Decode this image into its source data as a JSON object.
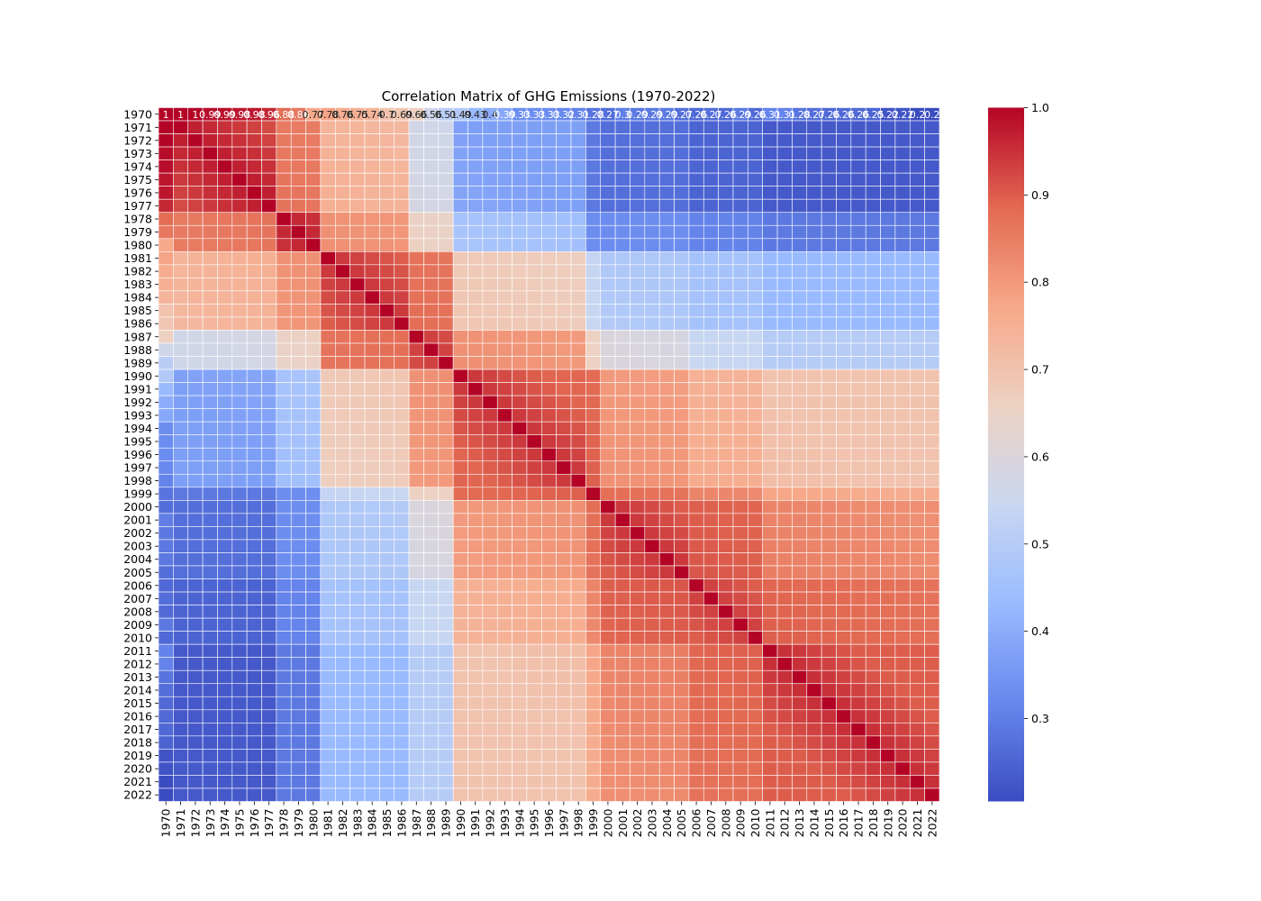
{
  "chart_data": {
    "type": "heatmap",
    "title": "Correlation Matrix of GHG Emissions (1970-2022)",
    "xlabel": "",
    "ylabel": "",
    "colormap": "coolwarm",
    "colormap_stops": [
      "#3b4cc0",
      "#6788ee",
      "#9abbff",
      "#c9d7f0",
      "#edd1c2",
      "#f7a889",
      "#e26952",
      "#b40426"
    ],
    "color_range": [
      0.205,
      1.0
    ],
    "colorbar_ticks": [
      "0.3",
      "0.4",
      "0.5",
      "0.6",
      "0.7",
      "0.8",
      "0.9",
      "1.0"
    ],
    "years_start": 1970,
    "years_end": 2022,
    "annotated_row": {
      "year": "1970",
      "labels": [
        "1",
        "1",
        "1",
        "0.99",
        "0.99",
        "0.98",
        "0.98",
        "0.96",
        "0.88",
        "0.86",
        "0.77",
        "0.78",
        "0.76",
        "0.75",
        "0.74",
        "0.7",
        "0.69",
        "0.66",
        "0.56",
        "0.51",
        "0.49",
        "0.43",
        "0.4",
        "0.39",
        "0.33",
        "0.33",
        "0.33",
        "0.32",
        "0.31",
        "0.28",
        "0.27",
        "0.3",
        "0.29",
        "0.29",
        "0.29",
        "0.27",
        "0.26",
        "0.27",
        "0.26",
        "0.29",
        "0.26",
        "0.31",
        "0.31",
        "0.28",
        "0.27",
        "0.26",
        "0.26",
        "0.26",
        "0.25",
        "0.22",
        "0.22",
        "0.2",
        "0.2"
      ]
    },
    "blocks": [
      {
        "name": "1970-1977",
        "start": 1970,
        "end": 1977
      },
      {
        "name": "1978-1980",
        "start": 1978,
        "end": 1980
      },
      {
        "name": "1981-1986",
        "start": 1981,
        "end": 1986
      },
      {
        "name": "1987-1989",
        "start": 1987,
        "end": 1989
      },
      {
        "name": "1990-1998",
        "start": 1990,
        "end": 1998
      },
      {
        "name": "1999",
        "start": 1999,
        "end": 1999
      },
      {
        "name": "2000-2005",
        "start": 2000,
        "end": 2005
      },
      {
        "name": "2006-2010",
        "start": 2006,
        "end": 2010
      },
      {
        "name": "2011-2022",
        "start": 2011,
        "end": 2022
      }
    ],
    "within_block_corr": [
      0.97,
      0.96,
      0.94,
      0.93,
      0.94,
      1.0,
      0.94,
      0.93,
      0.95
    ],
    "between_block_corr": [
      [
        0.97,
        0.85,
        0.74,
        0.58,
        0.39,
        0.31,
        0.29,
        0.27,
        0.25
      ],
      [
        0.85,
        0.96,
        0.8,
        0.65,
        0.47,
        0.35,
        0.35,
        0.33,
        0.31
      ],
      [
        0.74,
        0.8,
        0.94,
        0.86,
        0.68,
        0.55,
        0.5,
        0.48,
        0.45
      ],
      [
        0.58,
        0.65,
        0.86,
        0.93,
        0.8,
        0.66,
        0.6,
        0.56,
        0.52
      ],
      [
        0.39,
        0.47,
        0.68,
        0.8,
        0.94,
        0.88,
        0.8,
        0.76,
        0.72
      ],
      [
        0.31,
        0.35,
        0.55,
        0.66,
        0.88,
        1.0,
        0.86,
        0.83,
        0.78
      ],
      [
        0.29,
        0.35,
        0.5,
        0.6,
        0.8,
        0.86,
        0.94,
        0.89,
        0.84
      ],
      [
        0.27,
        0.33,
        0.48,
        0.56,
        0.76,
        0.83,
        0.89,
        0.93,
        0.88
      ],
      [
        0.25,
        0.31,
        0.45,
        0.52,
        0.72,
        0.78,
        0.84,
        0.88,
        0.95
      ]
    ],
    "grid": true,
    "legend": "colorbar-right"
  }
}
